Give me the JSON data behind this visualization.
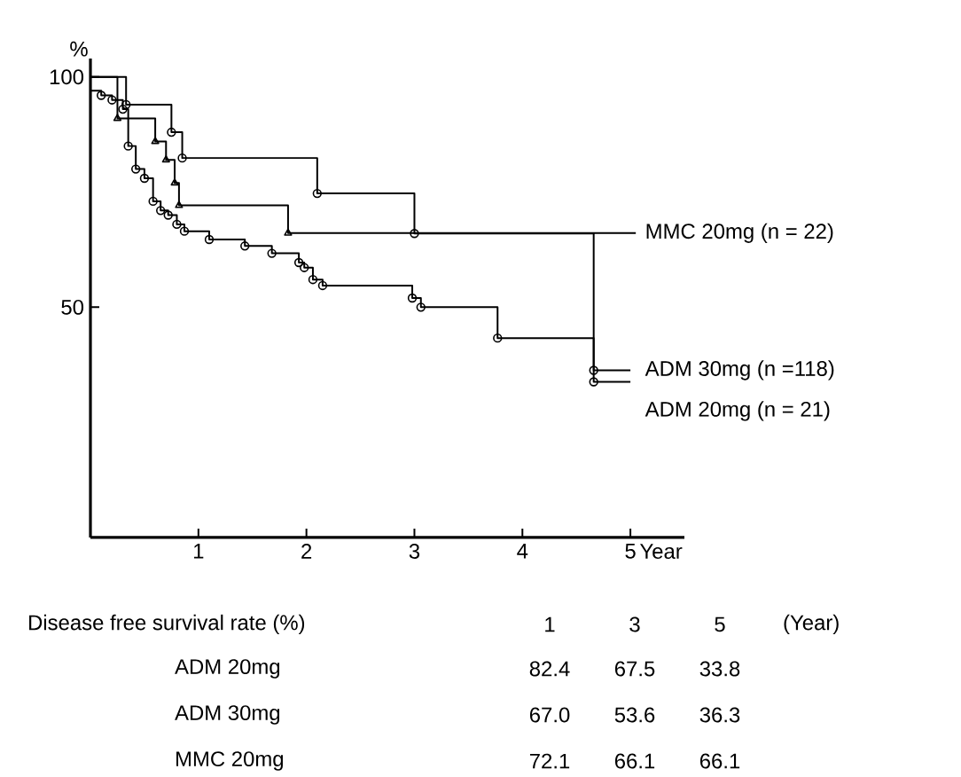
{
  "chart_data": {
    "type": "step",
    "ylabel": "%",
    "xlabel": "Year",
    "xlim": [
      0,
      5.5
    ],
    "ylim": [
      0,
      104
    ],
    "xticks": [
      1,
      2,
      3,
      4,
      5
    ],
    "yticks": [
      50,
      100
    ],
    "grid": false,
    "series": [
      {
        "name": "ADM 20mg (n = 21)",
        "color": "#000000",
        "marker": "circle",
        "x": [
          0,
          0.33,
          0.75,
          0.85,
          2.1,
          3.0,
          4.66,
          5.0
        ],
        "values": [
          100,
          94,
          88,
          82.4,
          74.7,
          66,
          33.8,
          33.8
        ]
      },
      {
        "name": "ADM 30mg (n =118)",
        "color": "#000000",
        "marker": "circle",
        "x": [
          0,
          0.1,
          0.2,
          0.3,
          0.35,
          0.42,
          0.5,
          0.58,
          0.65,
          0.72,
          0.8,
          0.87,
          1.1,
          1.43,
          1.68,
          1.93,
          1.98,
          2.06,
          2.15,
          2.98,
          3.06,
          3.77,
          4.66,
          5.0
        ],
        "values": [
          97,
          96,
          95,
          93,
          85,
          80,
          78,
          73,
          71,
          70,
          68,
          66.5,
          64.7,
          63.3,
          61.7,
          59.7,
          58.6,
          56,
          54.7,
          52,
          50,
          43.3,
          36.3,
          36.3
        ]
      },
      {
        "name": "MMC 20mg (n = 22)",
        "color": "#000000",
        "marker": "triangle",
        "x": [
          0,
          0.25,
          0.6,
          0.7,
          0.78,
          0.82,
          1.83,
          5.05
        ],
        "values": [
          100,
          91,
          86,
          82,
          77,
          72.1,
          66.1,
          66.1
        ]
      }
    ],
    "annotations": [
      "Disease free survival rate (%)",
      "1",
      "3",
      "5",
      "(Year)",
      "ADM 20mg",
      "82.4",
      "67.5",
      "33.8",
      "ADM 30mg",
      "67.0",
      "53.6",
      "36.3",
      "MMC 20mg",
      "72.1",
      "66.1",
      "66.1"
    ]
  }
}
